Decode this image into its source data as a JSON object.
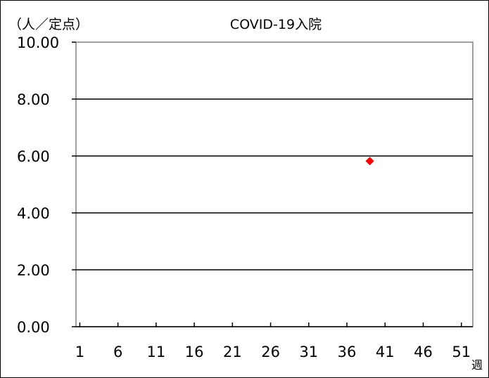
{
  "chart_data": {
    "type": "scatter",
    "title": "COVID-19入院",
    "ylabel": "（人／定点）",
    "xlabel": "週",
    "ylim": [
      0,
      10
    ],
    "xlim": [
      1,
      52
    ],
    "y_ticks": [
      "0.00",
      "2.00",
      "4.00",
      "6.00",
      "8.00",
      "10.00"
    ],
    "x_ticks": [
      "1",
      "6",
      "11",
      "16",
      "21",
      "26",
      "31",
      "36",
      "41",
      "46",
      "51"
    ],
    "grid": true,
    "series": [
      {
        "color": "#ff0000",
        "marker": "diamond",
        "points": [
          {
            "x": 39,
            "y": 5.82
          }
        ]
      }
    ]
  }
}
